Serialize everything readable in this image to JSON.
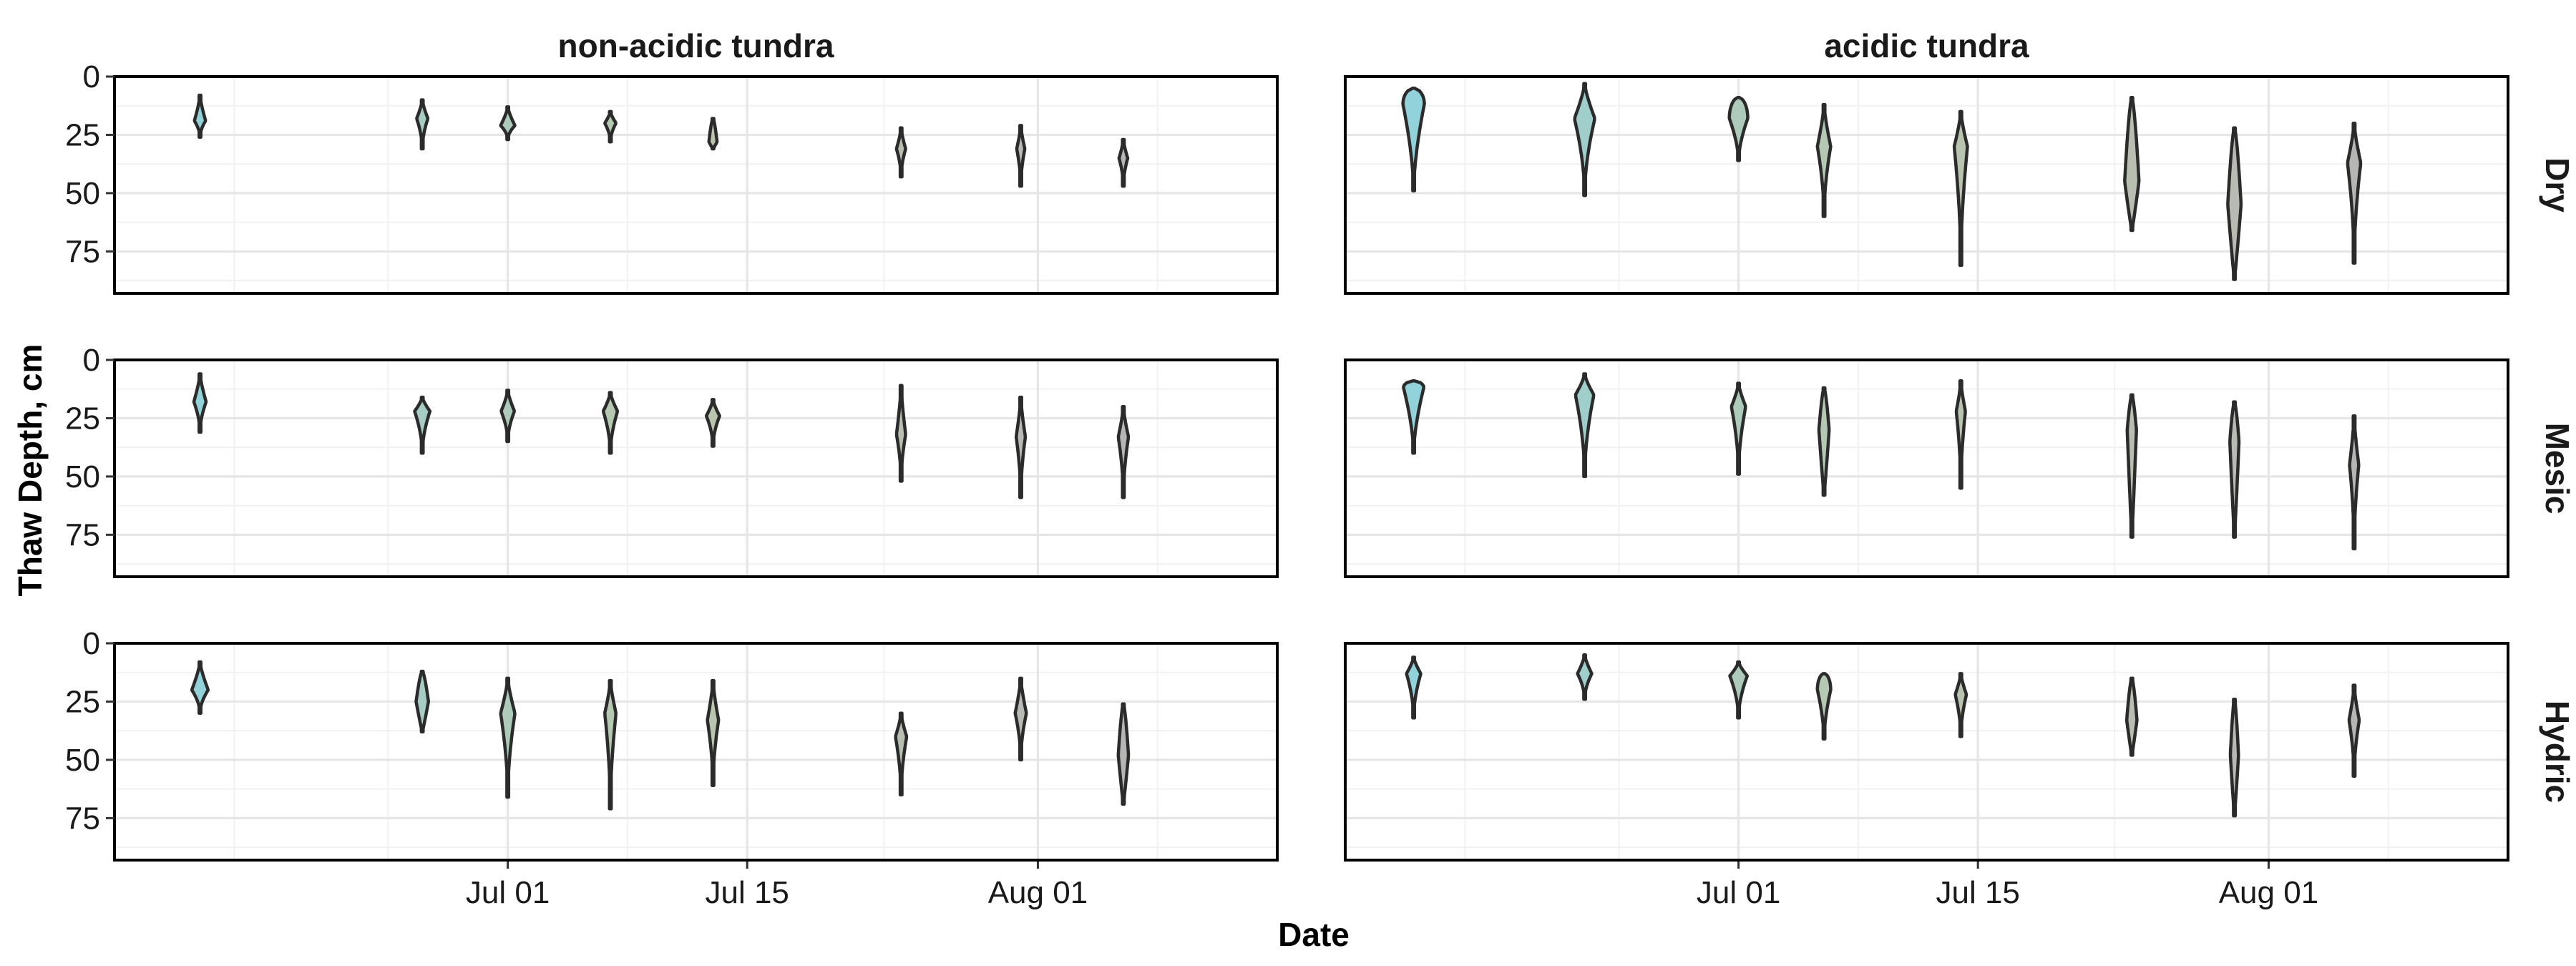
{
  "chart_data": {
    "type": "violin",
    "xlabel": "Date",
    "ylabel": "Thaw Depth, cm",
    "x_range": [
      "2018-06-08",
      "2018-08-15"
    ],
    "y_range": [
      0,
      93
    ],
    "y_reversed": true,
    "y_ticks": [
      0,
      25,
      50,
      75
    ],
    "x_ticks": [
      {
        "date": "2018-07-01",
        "label": "Jul 01"
      },
      {
        "date": "2018-07-15",
        "label": "Jul 15"
      },
      {
        "date": "2018-08-01",
        "label": "Aug 01"
      }
    ],
    "grid": true,
    "colors": {
      "early": "#8fd3de",
      "late": "#b6b6b6",
      "mid": "#b9c7ad"
    },
    "columns": [
      "non-acidic tundra",
      "acidic tundra"
    ],
    "rows": [
      "Dry",
      "Mesic",
      "Hydric"
    ],
    "panels": [
      {
        "column": "non-acidic tundra",
        "row": "Dry",
        "violins": [
          {
            "date": "2018-06-13",
            "min": 8,
            "max": 26,
            "peak": 19,
            "width": 0.22,
            "shape": "d"
          },
          {
            "date": "2018-06-26",
            "min": 10,
            "max": 31,
            "peak": 18,
            "width": 0.22,
            "shape": "d"
          },
          {
            "date": "2018-07-01",
            "min": 13,
            "max": 27,
            "peak": 21,
            "width": 0.28,
            "shape": "d"
          },
          {
            "date": "2018-07-07",
            "min": 15,
            "max": 28,
            "peak": 20,
            "width": 0.22,
            "shape": "d"
          },
          {
            "date": "2018-07-13",
            "min": 18,
            "max": 31,
            "peak": 28,
            "width": 0.16,
            "shape": "b"
          },
          {
            "date": "2018-07-24",
            "min": 22,
            "max": 43,
            "peak": 31,
            "width": 0.18,
            "shape": "d"
          },
          {
            "date": "2018-07-31",
            "min": 21,
            "max": 47,
            "peak": 31,
            "width": 0.16,
            "shape": "d"
          },
          {
            "date": "2018-08-06",
            "min": 27,
            "max": 47,
            "peak": 35,
            "width": 0.17,
            "shape": "d"
          }
        ]
      },
      {
        "column": "acidic tundra",
        "row": "Dry",
        "violins": [
          {
            "date": "2018-06-12",
            "min": 5,
            "max": 49,
            "peak": 12,
            "width": 0.42,
            "shape": "t"
          },
          {
            "date": "2018-06-22",
            "min": 3,
            "max": 51,
            "peak": 18,
            "width": 0.4,
            "shape": "d"
          },
          {
            "date": "2018-07-01",
            "min": 9,
            "max": 36,
            "peak": 18,
            "width": 0.36,
            "shape": "t"
          },
          {
            "date": "2018-07-06",
            "min": 12,
            "max": 60,
            "peak": 30,
            "width": 0.26,
            "shape": "d"
          },
          {
            "date": "2018-07-14",
            "min": 15,
            "max": 81,
            "peak": 30,
            "width": 0.26,
            "shape": "d"
          },
          {
            "date": "2018-07-24",
            "min": 9,
            "max": 66,
            "peak": 45,
            "width": 0.28,
            "shape": "b"
          },
          {
            "date": "2018-07-30",
            "min": 22,
            "max": 87,
            "peak": 55,
            "width": 0.26,
            "shape": "b"
          },
          {
            "date": "2018-08-06",
            "min": 20,
            "max": 80,
            "peak": 37,
            "width": 0.26,
            "shape": "d"
          }
        ]
      },
      {
        "column": "non-acidic tundra",
        "row": "Mesic",
        "violins": [
          {
            "date": "2018-06-13",
            "min": 6,
            "max": 31,
            "peak": 18,
            "width": 0.24,
            "shape": "d"
          },
          {
            "date": "2018-06-26",
            "min": 16,
            "max": 40,
            "peak": 22,
            "width": 0.3,
            "shape": "d"
          },
          {
            "date": "2018-07-01",
            "min": 13,
            "max": 35,
            "peak": 22,
            "width": 0.26,
            "shape": "d"
          },
          {
            "date": "2018-07-07",
            "min": 14,
            "max": 40,
            "peak": 22,
            "width": 0.28,
            "shape": "d"
          },
          {
            "date": "2018-07-13",
            "min": 17,
            "max": 37,
            "peak": 24,
            "width": 0.26,
            "shape": "d"
          },
          {
            "date": "2018-07-24",
            "min": 11,
            "max": 52,
            "peak": 32,
            "width": 0.18,
            "shape": "d"
          },
          {
            "date": "2018-07-31",
            "min": 16,
            "max": 59,
            "peak": 33,
            "width": 0.18,
            "shape": "d"
          },
          {
            "date": "2018-08-06",
            "min": 20,
            "max": 59,
            "peak": 33,
            "width": 0.2,
            "shape": "d"
          }
        ]
      },
      {
        "column": "acidic tundra",
        "row": "Mesic",
        "violins": [
          {
            "date": "2018-06-12",
            "min": 9,
            "max": 40,
            "peak": 12,
            "width": 0.4,
            "shape": "t"
          },
          {
            "date": "2018-06-22",
            "min": 6,
            "max": 50,
            "peak": 15,
            "width": 0.36,
            "shape": "d"
          },
          {
            "date": "2018-07-01",
            "min": 10,
            "max": 49,
            "peak": 20,
            "width": 0.28,
            "shape": "d"
          },
          {
            "date": "2018-07-06",
            "min": 12,
            "max": 58,
            "peak": 30,
            "width": 0.2,
            "shape": "b"
          },
          {
            "date": "2018-07-14",
            "min": 9,
            "max": 55,
            "peak": 22,
            "width": 0.18,
            "shape": "d"
          },
          {
            "date": "2018-07-24",
            "min": 15,
            "max": 76,
            "peak": 30,
            "width": 0.18,
            "shape": "b"
          },
          {
            "date": "2018-07-30",
            "min": 18,
            "max": 76,
            "peak": 35,
            "width": 0.18,
            "shape": "b"
          },
          {
            "date": "2018-08-06",
            "min": 24,
            "max": 81,
            "peak": 45,
            "width": 0.18,
            "shape": "d"
          }
        ]
      },
      {
        "column": "non-acidic tundra",
        "row": "Hydric",
        "violins": [
          {
            "date": "2018-06-13",
            "min": 8,
            "max": 30,
            "peak": 20,
            "width": 0.32,
            "shape": "d"
          },
          {
            "date": "2018-06-26",
            "min": 12,
            "max": 38,
            "peak": 25,
            "width": 0.24,
            "shape": "b"
          },
          {
            "date": "2018-07-01",
            "min": 15,
            "max": 66,
            "peak": 30,
            "width": 0.28,
            "shape": "d"
          },
          {
            "date": "2018-07-07",
            "min": 16,
            "max": 71,
            "peak": 30,
            "width": 0.22,
            "shape": "d"
          },
          {
            "date": "2018-07-13",
            "min": 16,
            "max": 61,
            "peak": 33,
            "width": 0.22,
            "shape": "d"
          },
          {
            "date": "2018-07-24",
            "min": 30,
            "max": 65,
            "peak": 40,
            "width": 0.22,
            "shape": "d"
          },
          {
            "date": "2018-07-31",
            "min": 15,
            "max": 50,
            "peak": 30,
            "width": 0.22,
            "shape": "d"
          },
          {
            "date": "2018-08-06",
            "min": 26,
            "max": 69,
            "peak": 48,
            "width": 0.2,
            "shape": "b"
          }
        ]
      },
      {
        "column": "acidic tundra",
        "row": "Hydric",
        "violins": [
          {
            "date": "2018-06-12",
            "min": 6,
            "max": 32,
            "peak": 13,
            "width": 0.28,
            "shape": "d"
          },
          {
            "date": "2018-06-22",
            "min": 5,
            "max": 24,
            "peak": 13,
            "width": 0.28,
            "shape": "d"
          },
          {
            "date": "2018-07-01",
            "min": 8,
            "max": 32,
            "peak": 14,
            "width": 0.34,
            "shape": "d"
          },
          {
            "date": "2018-07-06",
            "min": 13,
            "max": 41,
            "peak": 20,
            "width": 0.26,
            "shape": "t"
          },
          {
            "date": "2018-07-14",
            "min": 13,
            "max": 40,
            "peak": 22,
            "width": 0.22,
            "shape": "d"
          },
          {
            "date": "2018-07-24",
            "min": 15,
            "max": 48,
            "peak": 33,
            "width": 0.2,
            "shape": "b"
          },
          {
            "date": "2018-07-30",
            "min": 24,
            "max": 74,
            "peak": 48,
            "width": 0.16,
            "shape": "b"
          },
          {
            "date": "2018-08-06",
            "min": 18,
            "max": 57,
            "peak": 33,
            "width": 0.2,
            "shape": "d"
          }
        ]
      }
    ]
  }
}
